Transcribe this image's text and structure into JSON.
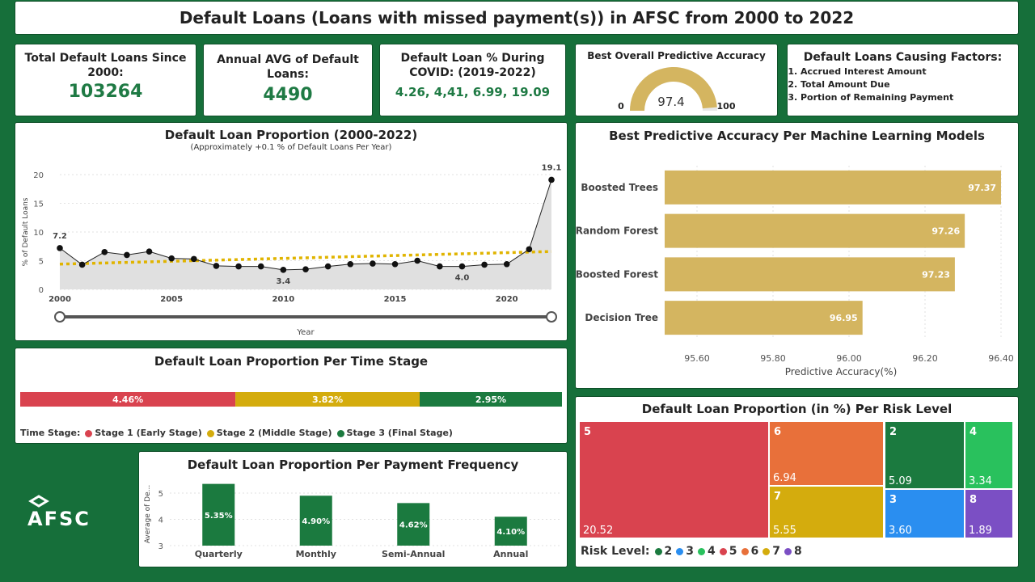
{
  "header": {
    "title": "Default Loans (Loans with missed payment(s)) in AFSC from 2000 to 2022"
  },
  "kpis": {
    "total": {
      "label": "Total Default Loans Since 2000:",
      "value": "103264"
    },
    "annual": {
      "label": "Annual AVG of Default Loans:",
      "value": "4490"
    },
    "covid": {
      "label": "Default Loan % During COVID: (2019-2022)",
      "value": "4.26, 4,41, 6.99, 19.09"
    }
  },
  "gauge": {
    "title": "Best Overall Predictive Accuracy",
    "value": 97.4,
    "value_label": "97.4",
    "min": 0,
    "max": 100,
    "min_label": "0",
    "max_label": "100",
    "color": "#d4b560"
  },
  "factors": {
    "title": "Default Loans Causing Factors:",
    "items": [
      "Accrued Interest Amount",
      "Total Amount Due",
      "Portion of Remaining Payment"
    ]
  },
  "brand": {
    "logo_text": "AFSC"
  },
  "chart_data": [
    {
      "id": "proportion",
      "type": "line",
      "title": "Default Loan Proportion (2000-2022)",
      "subtitle": "(Approximately +0.1 % of Default Loans Per Year)",
      "xlabel": "Year",
      "ylabel": "% of Default Loans",
      "x": [
        2000,
        2001,
        2002,
        2003,
        2004,
        2005,
        2006,
        2007,
        2008,
        2009,
        2010,
        2011,
        2012,
        2013,
        2014,
        2015,
        2016,
        2017,
        2018,
        2019,
        2020,
        2021,
        2022
      ],
      "values": [
        7.2,
        4.3,
        6.5,
        6.0,
        6.6,
        5.4,
        5.3,
        4.1,
        4.0,
        4.0,
        3.4,
        3.5,
        4.0,
        4.4,
        4.5,
        4.4,
        5.0,
        4.0,
        4.0,
        4.3,
        4.4,
        6.99,
        19.1
      ],
      "trend": [
        4.4,
        6.6
      ],
      "xticks": [
        "2000",
        "2005",
        "2010",
        "2015",
        "2020"
      ],
      "yticks": [
        "0",
        "5",
        "10",
        "15",
        "20"
      ],
      "ylim": [
        0,
        20
      ],
      "annotations": [
        {
          "x": 2000,
          "y": 7.2,
          "label": "7.2"
        },
        {
          "x": 2010,
          "y": 3.4,
          "label": "3.4"
        },
        {
          "x": 2018,
          "y": 4.0,
          "label": "4.0"
        },
        {
          "x": 2022,
          "y": 19.1,
          "label": "19.1"
        }
      ],
      "colors": {
        "line": "#222222",
        "area": "#e0e0e0",
        "trend": "#e0b400"
      }
    },
    {
      "id": "stage",
      "type": "bar",
      "title": "Default Loan Proportion Per Time Stage",
      "legend_title": "Time Stage:",
      "categories": [
        "Stage 1 (Early Stage)",
        "Stage 2 (Middle Stage)",
        "Stage 3 (Final Stage)"
      ],
      "values": [
        4.46,
        3.82,
        2.95
      ],
      "labels": [
        "4.46%",
        "3.82%",
        "2.95%"
      ],
      "colors": [
        "#d9434f",
        "#d4ac0d",
        "#1b7a3f"
      ]
    },
    {
      "id": "frequency",
      "type": "bar",
      "title": "Default Loan Proportion Per Payment Frequency",
      "ylabel": "Average of De...",
      "categories": [
        "Quarterly",
        "Monthly",
        "Semi-Annual",
        "Annual"
      ],
      "values": [
        5.35,
        4.9,
        4.62,
        4.1
      ],
      "labels": [
        "5.35%",
        "4.90%",
        "4.62%",
        "4.10%"
      ],
      "yticks": [
        "3",
        "4",
        "5"
      ],
      "ylim": [
        3,
        5.4
      ],
      "color": "#1b7a3f"
    },
    {
      "id": "models",
      "type": "bar",
      "title": "Best Predictive Accuracy Per Machine Learning Models",
      "xlabel": "Predictive Accuracy(%)",
      "categories": [
        "Boosted Trees",
        "Random Forest",
        "Boosted Forest",
        "Decision Tree"
      ],
      "values": [
        97.37,
        97.26,
        97.23,
        96.95
      ],
      "labels": [
        "97.37",
        "97.26",
        "97.23",
        "96.95"
      ],
      "xticks": [
        "95.60",
        "95.80",
        "96.00",
        "96.20",
        "96.40"
      ],
      "color": "#d4b560"
    },
    {
      "id": "risk",
      "type": "heatmap",
      "title": "Default Loan Proportion (in %) Per Risk Level",
      "legend_title": "Risk Level:",
      "items": [
        {
          "level": "5",
          "value": "20.52",
          "color": "#d9434f"
        },
        {
          "level": "6",
          "value": "6.94",
          "color": "#e8703a"
        },
        {
          "level": "7",
          "value": "5.55",
          "color": "#d4ac0d"
        },
        {
          "level": "2",
          "value": "5.09",
          "color": "#1b7a3f"
        },
        {
          "level": "3",
          "value": "3.60",
          "color": "#2a8ef0"
        },
        {
          "level": "4",
          "value": "3.34",
          "color": "#29c15d"
        },
        {
          "level": "8",
          "value": "1.89",
          "color": "#7b4fc4"
        }
      ],
      "legend": [
        {
          "label": "2",
          "color": "#1b7a3f"
        },
        {
          "label": "3",
          "color": "#2a8ef0"
        },
        {
          "label": "4",
          "color": "#29c15d"
        },
        {
          "label": "5",
          "color": "#d9434f"
        },
        {
          "label": "6",
          "color": "#e8703a"
        },
        {
          "label": "7",
          "color": "#d4ac0d"
        },
        {
          "label": "8",
          "color": "#7b4fc4"
        }
      ]
    }
  ]
}
